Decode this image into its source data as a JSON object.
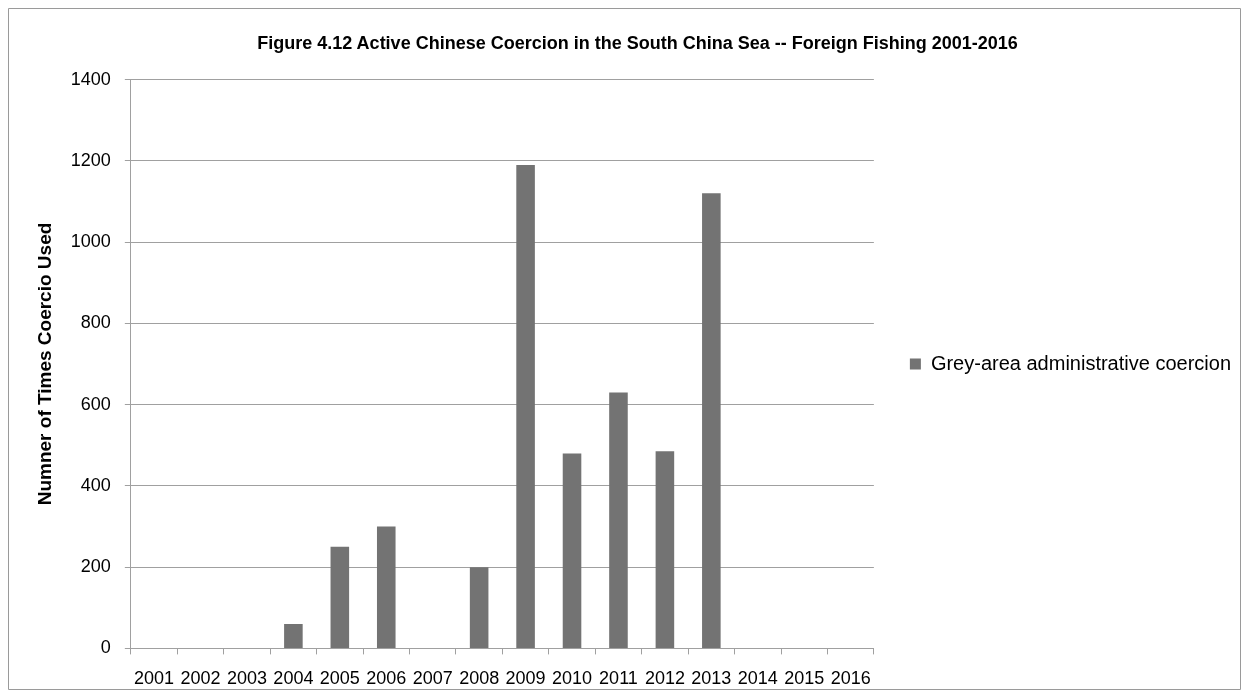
{
  "chart_data": {
    "type": "bar",
    "title": "Figure 4.12 Active Chinese Coercion in the South China Sea -- Foreign Fishing 2001-2016",
    "ylabel": "Numner of Times Coercio Used",
    "categories": [
      "2001",
      "2002",
      "2003",
      "2004",
      "2005",
      "2006",
      "2007",
      "2008",
      "2009",
      "2010",
      "2011",
      "2012",
      "2013",
      "2014",
      "2015",
      "2016"
    ],
    "series": [
      {
        "name": "Grey-area administrative coercion",
        "color": "#737373",
        "values": [
          0,
          0,
          0,
          60,
          250,
          300,
          0,
          200,
          1190,
          480,
          630,
          485,
          1120,
          0,
          0,
          0
        ]
      }
    ],
    "ylim": [
      0,
      1400
    ],
    "yticks": [
      0,
      200,
      400,
      600,
      800,
      1000,
      1200,
      1400
    ],
    "grid": "y",
    "legend": "right"
  }
}
